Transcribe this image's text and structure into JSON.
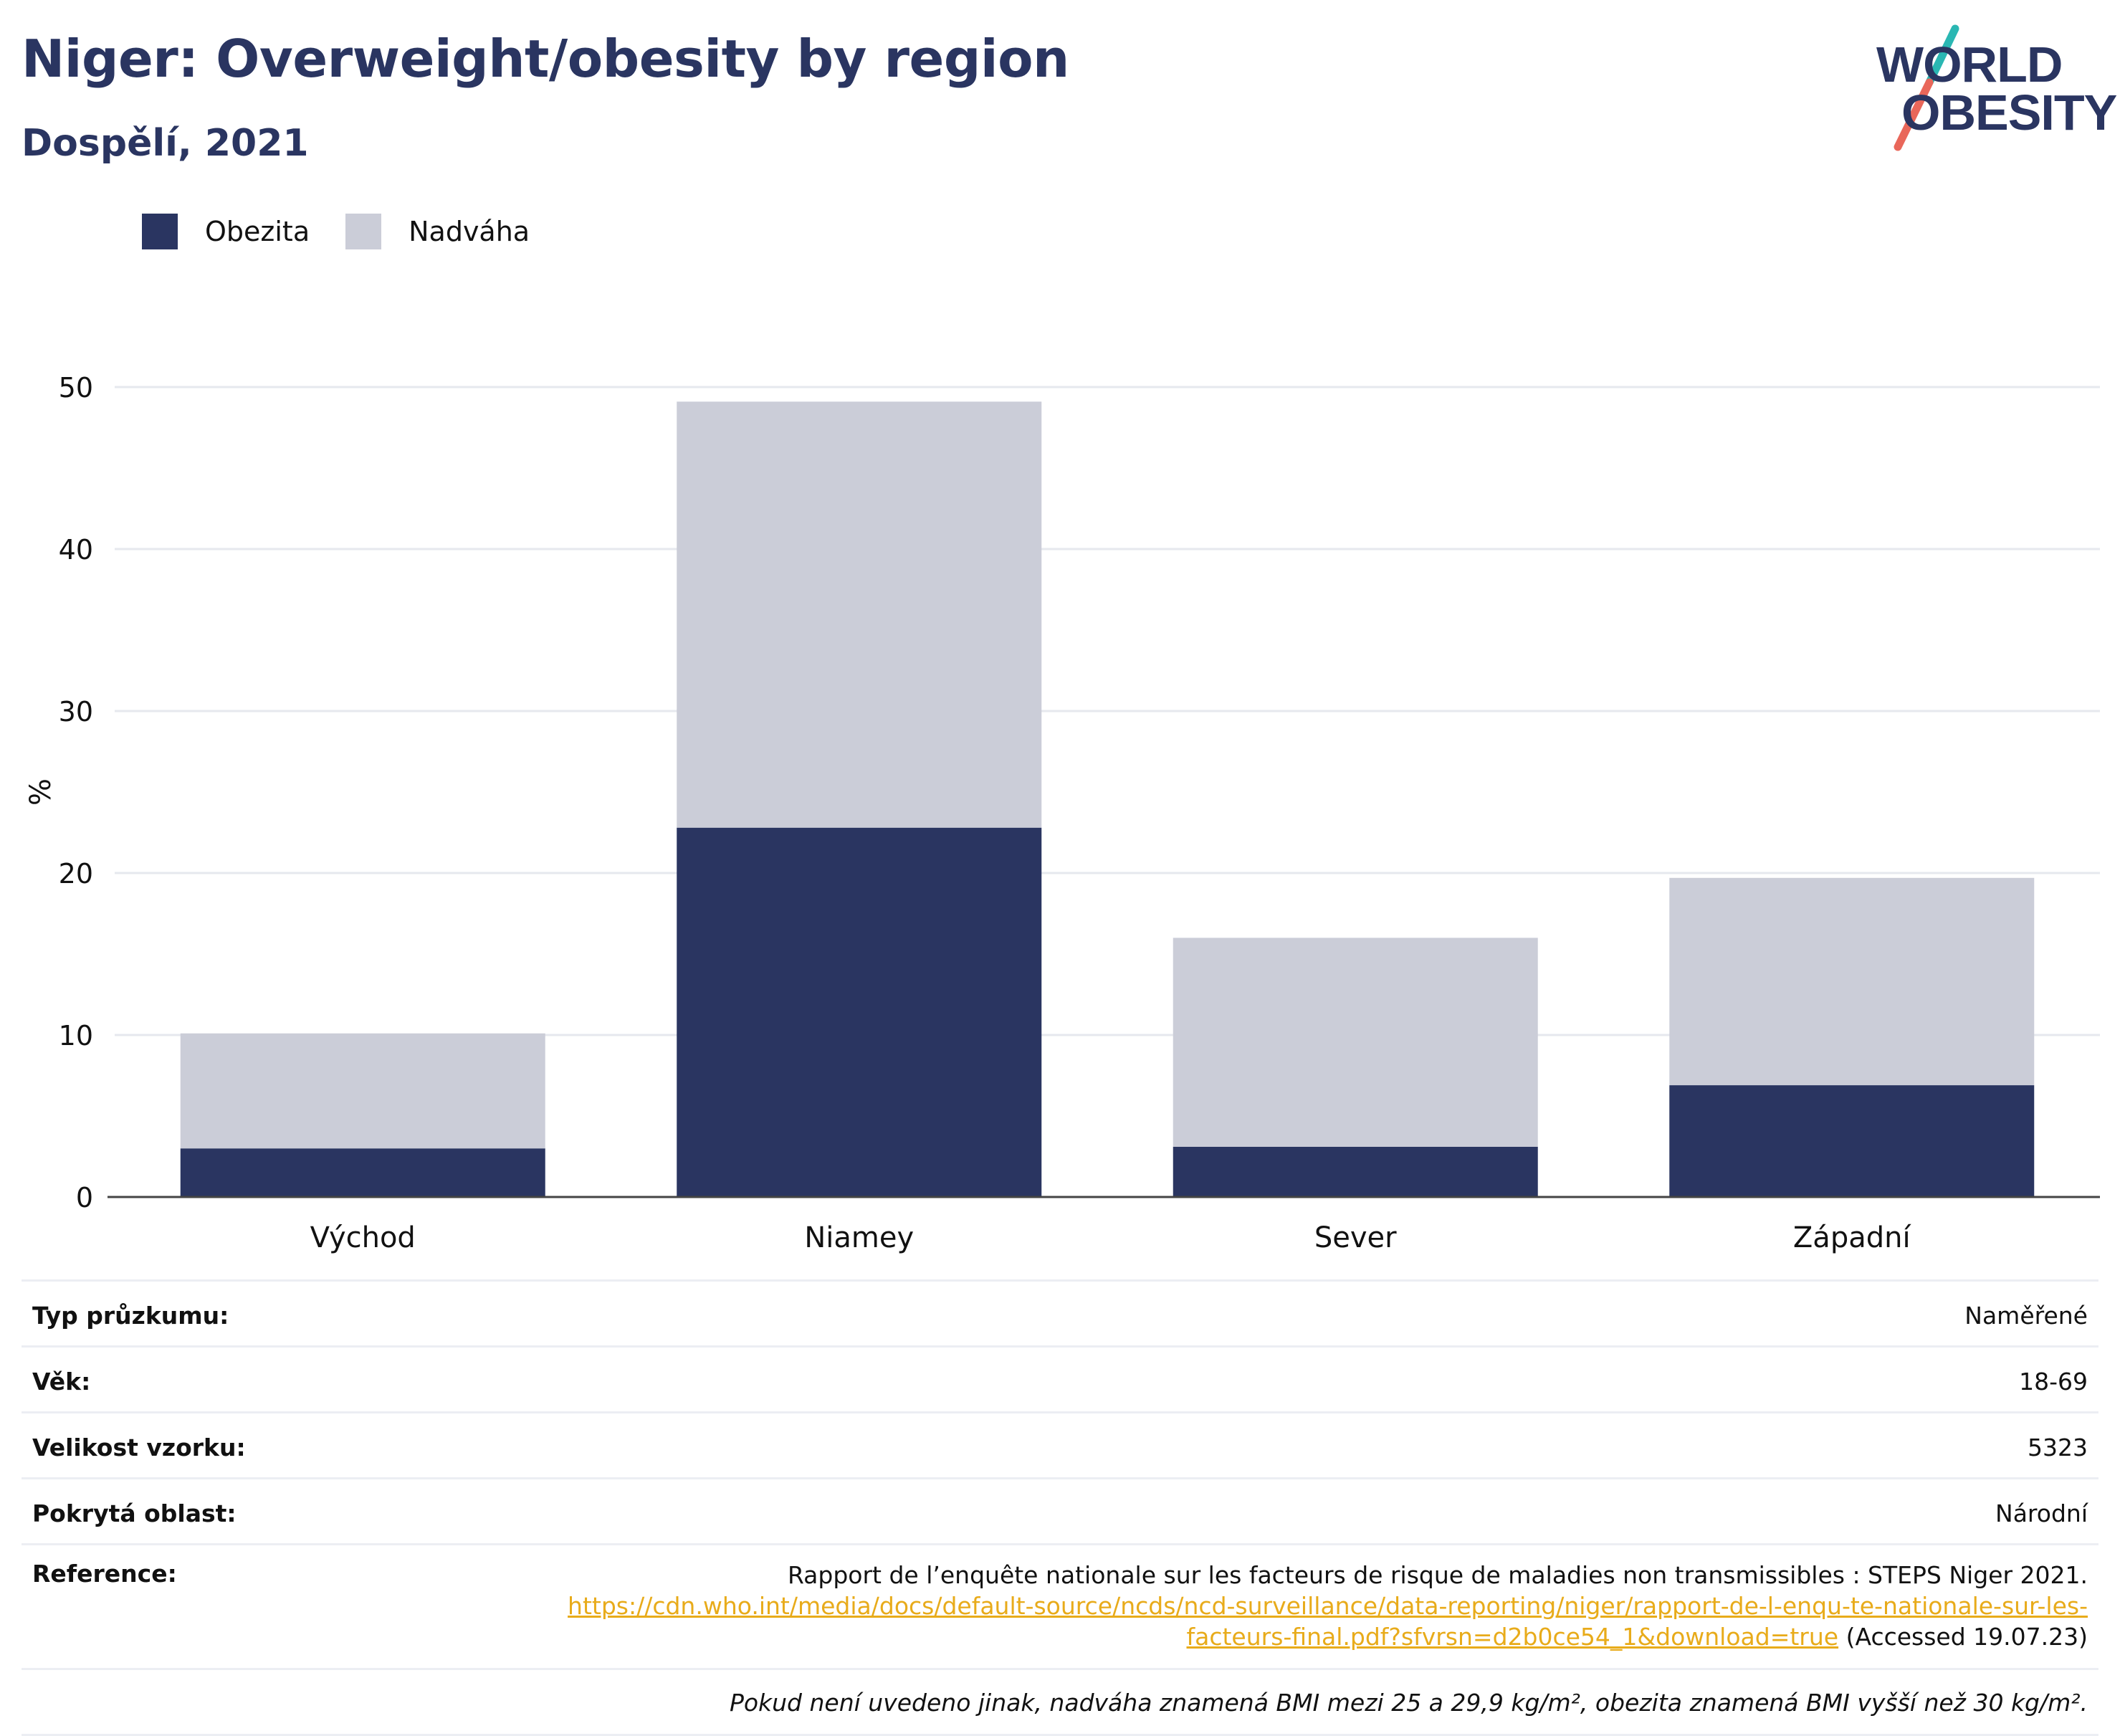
{
  "header": {
    "title": "Niger: Overweight/obesity by region",
    "subtitle": "Dospělí, 2021"
  },
  "logo": {
    "line1": "WORLD",
    "line2": "OBESITY",
    "accent_colors": [
      "#2ab7b3",
      "#e9675a"
    ]
  },
  "legend": [
    {
      "label": "Obezita",
      "color": "#2a3561"
    },
    {
      "label": "Nadváha",
      "color": "#cbcdd8"
    }
  ],
  "chart_data": {
    "type": "bar",
    "stacked": true,
    "categories": [
      "Východ",
      "Niamey",
      "Sever",
      "Západní"
    ],
    "series": [
      {
        "name": "Obezita",
        "color": "#2a3561",
        "values": [
          3.0,
          22.8,
          3.1,
          6.9
        ]
      },
      {
        "name": "Nadváha",
        "color": "#cbcdd8",
        "values": [
          7.1,
          26.3,
          12.9,
          12.8
        ]
      }
    ],
    "ylabel": "%",
    "ylim": [
      0,
      50
    ],
    "yticks": [
      0,
      10,
      20,
      30,
      40,
      50
    ],
    "grid": true,
    "legend_position": "top-left"
  },
  "info": {
    "survey_type": {
      "label": "Typ průzkumu:",
      "value": "Naměřené"
    },
    "age": {
      "label": "Věk:",
      "value": "18-69"
    },
    "sample_size": {
      "label": "Velikost vzorku:",
      "value": "5323"
    },
    "area": {
      "label": "Pokrytá oblast:",
      "value": "Národní"
    },
    "reference": {
      "label": "Reference:",
      "text": "Rapport de l’enquête nationale sur les facteurs de risque de maladies non transmissibles : STEPS Niger 2021.",
      "link_line1": "https://cdn.who.int/media/docs/default-source/ncds/ncd-surveillance/data-reporting/niger/rapport-de-l-enqu-te-nationale-sur-les-",
      "link_line2": "facteurs-final.pdf?sfvrsn=d2b0ce54_1&download=true",
      "accessed": "(Accessed 19.07.23)"
    },
    "note": "Pokud není uvedeno jinak, nadváha znamená BMI mezi 25 a 29,9 kg/m², obezita znamená BMI vyšší než 30 kg/m²."
  }
}
